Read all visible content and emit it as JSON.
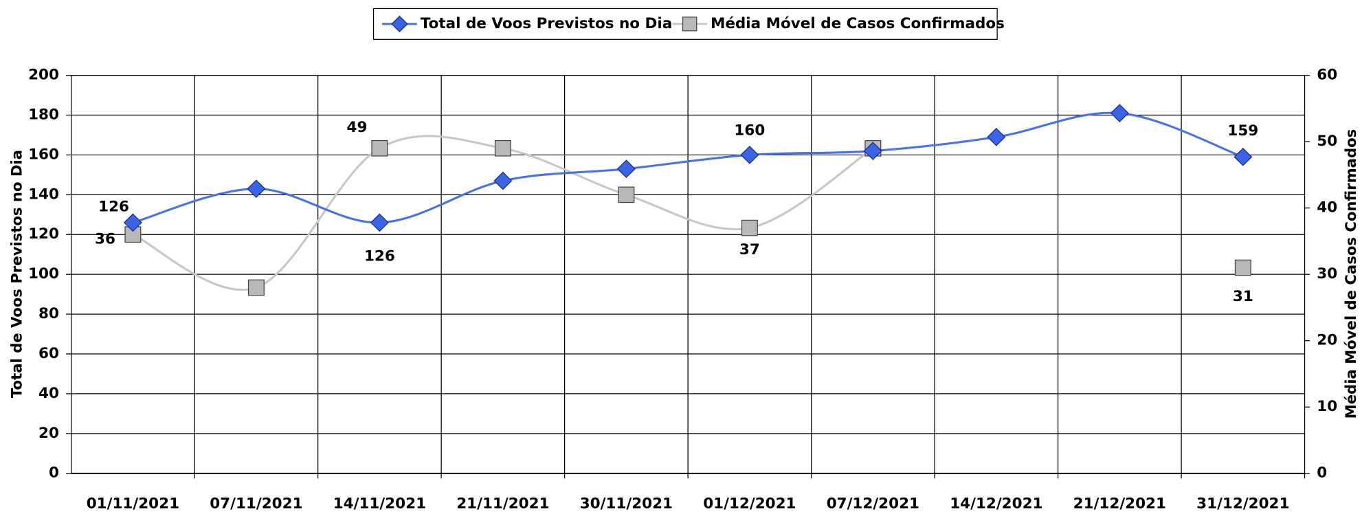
{
  "chart_data": {
    "type": "line",
    "categories": [
      "01/11/2021",
      "07/11/2021",
      "14/11/2021",
      "21/11/2021",
      "30/11/2021",
      "01/12/2021",
      "07/12/2021",
      "14/12/2021",
      "21/12/2021",
      "31/12/2021"
    ],
    "series": [
      {
        "name": "Total de Voos Previstos no Dia",
        "color": "#3b63e6",
        "values": [
          126,
          143,
          126,
          147,
          153,
          160,
          162,
          169,
          181,
          159
        ],
        "value_labels": [
          126,
          null,
          126,
          null,
          null,
          160,
          null,
          null,
          null,
          159
        ]
      },
      {
        "name": "Média Móvel de Casos Confirmados",
        "color": "#b9b9b9",
        "axis": "y2",
        "values": [
          36,
          28,
          49,
          49,
          42,
          37,
          49,
          null,
          null,
          31
        ],
        "value_labels": [
          36,
          null,
          49,
          null,
          null,
          37,
          null,
          null,
          null,
          31
        ]
      }
    ],
    "ylabel": "Total de Voos Previstos no Dia",
    "y2label": "Média Móvel de Casos Confirmados",
    "ylim": [
      0,
      200
    ],
    "yticks": [
      0,
      20,
      40,
      60,
      80,
      100,
      120,
      140,
      160,
      180,
      200
    ],
    "y2lim": [
      0,
      60
    ],
    "y2ticks": [
      0,
      10,
      20,
      30,
      40,
      50,
      60
    ],
    "grid": true,
    "legend": "top"
  }
}
